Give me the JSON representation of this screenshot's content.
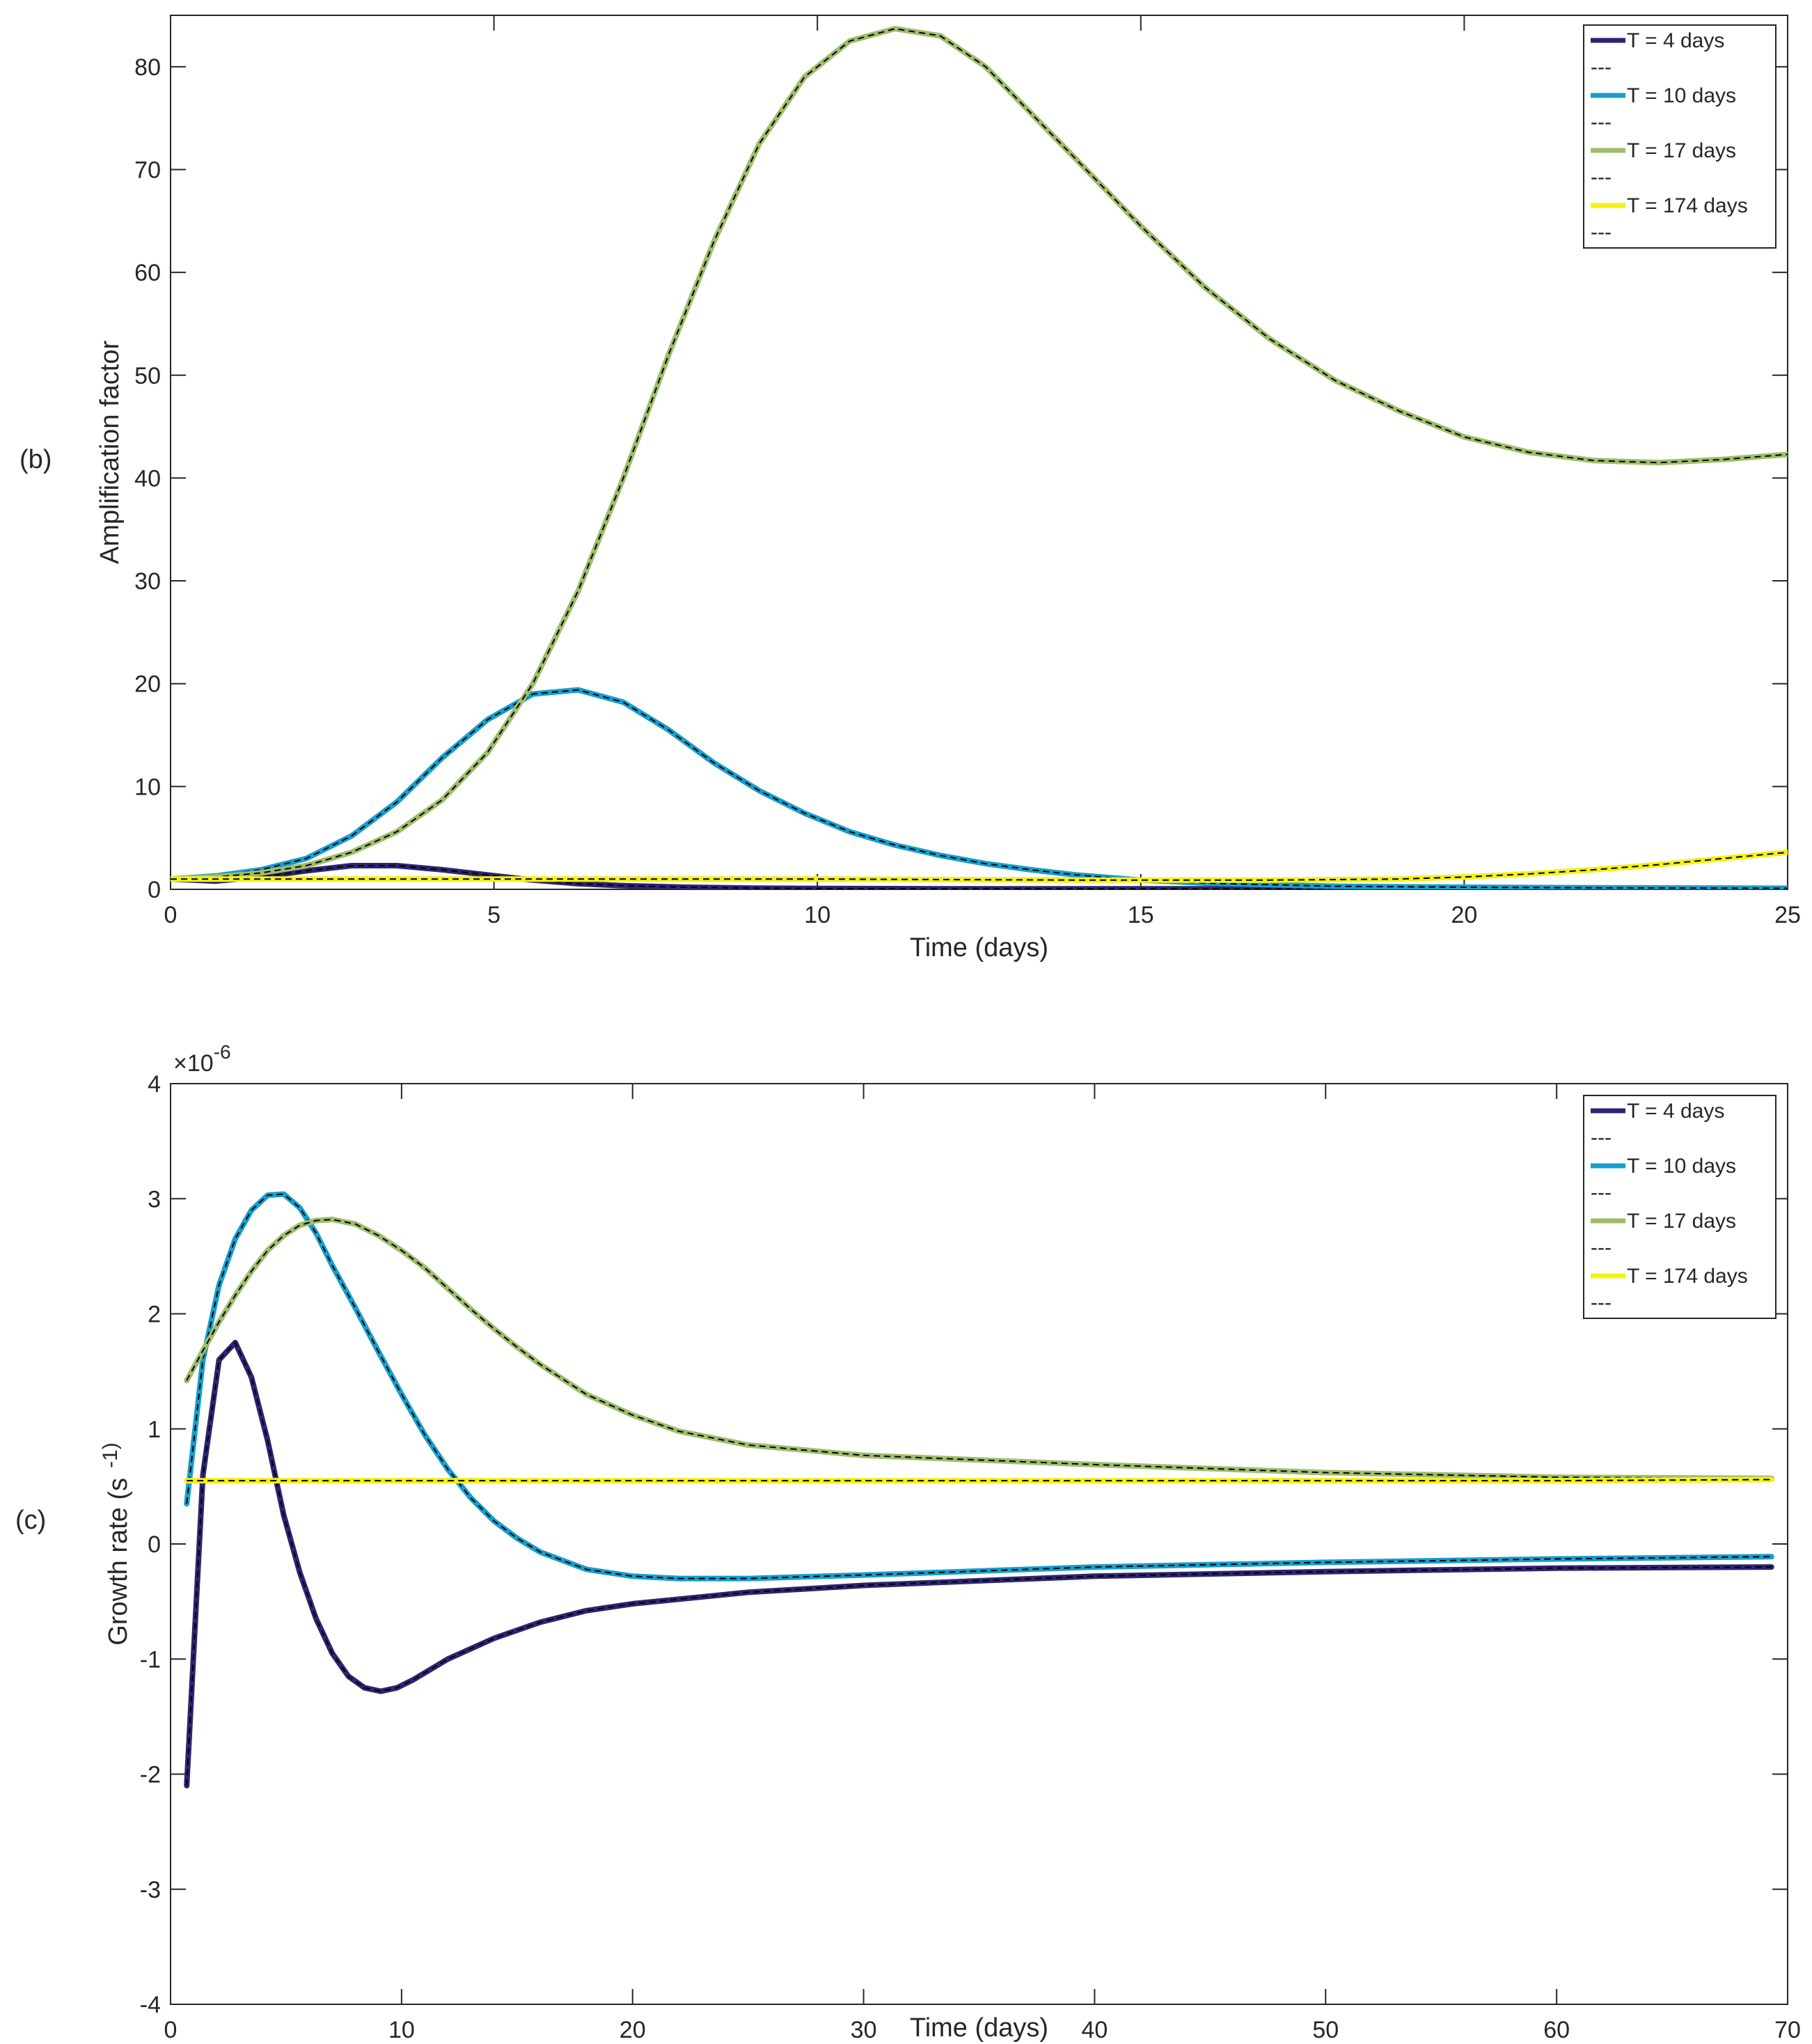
{
  "colors": {
    "t4": "#2e2472",
    "t10": "#169ecd",
    "t17": "#9fbd6b",
    "t174": "#f4f013",
    "dashed": "#000000",
    "axis": "#262626"
  },
  "chart_data": [
    {
      "type": "line",
      "panel_label": "(b)",
      "title": "",
      "xlabel": "Time (days)",
      "ylabel": "Amplification factor",
      "xlim": [
        0,
        25
      ],
      "ylim": [
        0,
        85
      ],
      "xticks": [
        0,
        5,
        10,
        15,
        20,
        25
      ],
      "yticks": [
        0,
        10,
        20,
        30,
        40,
        50,
        60,
        70,
        80
      ],
      "xtick_labels": [
        "0",
        "5",
        "10",
        "15",
        "20",
        "25"
      ],
      "ytick_labels": [
        "0",
        "10",
        "20",
        "30",
        "40",
        "50",
        "60",
        "70",
        "80"
      ],
      "legend_position": "top-right",
      "series": [
        {
          "name": "T = 4 days",
          "dashed_name": "---",
          "color_key": "t4",
          "x": [
            0,
            0.7,
            1.4,
            2.1,
            2.8,
            3.5,
            4.2,
            4.9,
            5.6,
            6.3,
            7.0,
            8.0,
            9.0,
            10.0,
            12.0,
            15.0,
            20.0,
            25.0
          ],
          "y": [
            1.0,
            0.8,
            1.2,
            1.8,
            2.3,
            2.3,
            1.9,
            1.4,
            0.9,
            0.55,
            0.35,
            0.2,
            0.12,
            0.08,
            0.05,
            0.05,
            0.05,
            0.05
          ]
        },
        {
          "name": "T = 10 days",
          "dashed_name": "---",
          "color_key": "t10",
          "x": [
            0,
            0.7,
            1.4,
            2.1,
            2.8,
            3.5,
            4.2,
            4.9,
            5.6,
            6.3,
            7.0,
            7.7,
            8.4,
            9.1,
            9.8,
            10.5,
            11.2,
            11.9,
            12.6,
            13.3,
            14.0,
            15.0,
            16.0,
            18.0,
            20.0,
            22.0,
            25.0
          ],
          "y": [
            1.0,
            1.3,
            1.9,
            3.0,
            5.2,
            8.5,
            12.8,
            16.5,
            19.0,
            19.4,
            18.2,
            15.5,
            12.3,
            9.6,
            7.4,
            5.6,
            4.3,
            3.3,
            2.5,
            1.9,
            1.4,
            0.9,
            0.6,
            0.3,
            0.2,
            0.15,
            0.1
          ]
        },
        {
          "name": "T = 17 days",
          "dashed_name": "---",
          "color_key": "t17",
          "x": [
            0,
            0.7,
            1.4,
            2.1,
            2.8,
            3.5,
            4.2,
            4.9,
            5.6,
            6.3,
            7.0,
            7.7,
            8.4,
            9.1,
            9.8,
            10.5,
            11.2,
            11.9,
            12.6,
            13.3,
            14.0,
            15.0,
            16.0,
            17.0,
            18.0,
            19.0,
            20.0,
            21.0,
            22.0,
            23.0,
            24.0,
            25.0
          ],
          "y": [
            1.0,
            1.2,
            1.6,
            2.3,
            3.6,
            5.6,
            8.7,
            13.3,
            20.0,
            29.0,
            40.0,
            52.0,
            63.0,
            72.5,
            79.0,
            82.5,
            83.7,
            83.0,
            80.0,
            75.5,
            71.0,
            64.5,
            58.5,
            53.5,
            49.5,
            46.5,
            44.0,
            42.5,
            41.7,
            41.5,
            41.8,
            42.3
          ]
        },
        {
          "name": "T = 174 days",
          "dashed_name": "---",
          "color_key": "t174",
          "x": [
            0,
            2,
            4,
            6,
            8,
            10,
            12,
            14,
            16,
            17,
            18,
            19,
            20,
            21,
            22,
            23,
            24,
            25
          ],
          "y": [
            1.0,
            1.0,
            1.0,
            1.0,
            1.0,
            1.0,
            0.95,
            0.9,
            0.9,
            0.9,
            0.95,
            1.0,
            1.2,
            1.5,
            1.9,
            2.4,
            3.0,
            3.6
          ]
        }
      ]
    },
    {
      "type": "line",
      "panel_label": "(c)",
      "title": "",
      "xlabel": "Time (days)",
      "ylabel": "Growth rate (s",
      "ylabel_exponent": "-1)",
      "exponent_label": "×10",
      "exponent_power": "-6",
      "xlim": [
        0,
        70
      ],
      "ylim": [
        -4,
        4
      ],
      "xticks": [
        0,
        10,
        20,
        30,
        40,
        50,
        60,
        70
      ],
      "yticks": [
        -4,
        -3,
        -2,
        -1,
        0,
        1,
        2,
        3,
        4
      ],
      "xtick_labels": [
        "0",
        "10",
        "20",
        "30",
        "40",
        "50",
        "60",
        "70"
      ],
      "ytick_labels": [
        "-4",
        "-3",
        "-2",
        "-1",
        "0",
        "1",
        "2",
        "3",
        "4"
      ],
      "legend_position": "top-right",
      "series": [
        {
          "name": "T = 4 days",
          "dashed_name": "---",
          "color_key": "t4",
          "x": [
            0.7,
            1.4,
            2.1,
            2.8,
            3.5,
            4.2,
            4.9,
            5.6,
            6.3,
            7.0,
            7.7,
            8.4,
            9.1,
            9.8,
            10.5,
            12,
            14,
            16,
            18,
            20,
            25,
            30,
            40,
            50,
            60,
            69.3
          ],
          "y": [
            -2.1,
            0.6,
            1.6,
            1.75,
            1.45,
            0.9,
            0.25,
            -0.25,
            -0.65,
            -0.95,
            -1.15,
            -1.25,
            -1.28,
            -1.25,
            -1.18,
            -1.0,
            -0.82,
            -0.68,
            -0.58,
            -0.52,
            -0.42,
            -0.36,
            -0.28,
            -0.24,
            -0.21,
            -0.2
          ]
        },
        {
          "name": "T = 10 days",
          "dashed_name": "---",
          "color_key": "t10",
          "x": [
            0.7,
            1.4,
            2.1,
            2.8,
            3.5,
            4.2,
            4.9,
            5.6,
            6.3,
            7.0,
            8.0,
            9.0,
            10.0,
            11.0,
            12.0,
            13.0,
            14.0,
            15.0,
            16.0,
            18.0,
            20.0,
            22.0,
            25.0,
            30.0,
            40.0,
            50.0,
            60.0,
            69.3
          ],
          "y": [
            0.35,
            1.6,
            2.25,
            2.65,
            2.9,
            3.03,
            3.04,
            2.92,
            2.7,
            2.42,
            2.05,
            1.67,
            1.3,
            0.95,
            0.65,
            0.4,
            0.2,
            0.05,
            -0.07,
            -0.22,
            -0.28,
            -0.3,
            -0.3,
            -0.27,
            -0.2,
            -0.16,
            -0.13,
            -0.11
          ]
        },
        {
          "name": "T = 17 days",
          "dashed_name": "---",
          "color_key": "t17",
          "x": [
            0.7,
            1.4,
            2.1,
            2.8,
            3.5,
            4.2,
            4.9,
            5.6,
            6.3,
            7.0,
            8.0,
            9.0,
            10.0,
            11.0,
            12.0,
            13.0,
            14.0,
            15.0,
            16.0,
            18.0,
            20.0,
            22.0,
            25.0,
            30.0,
            35.0,
            40.0,
            50.0,
            60.0,
            69.3
          ],
          "y": [
            1.42,
            1.68,
            1.93,
            2.16,
            2.37,
            2.55,
            2.68,
            2.77,
            2.81,
            2.82,
            2.78,
            2.68,
            2.55,
            2.4,
            2.22,
            2.04,
            1.87,
            1.71,
            1.56,
            1.3,
            1.12,
            0.98,
            0.86,
            0.77,
            0.73,
            0.69,
            0.62,
            0.58,
            0.57
          ]
        },
        {
          "name": "T = 174 days",
          "dashed_name": "---",
          "color_key": "t174",
          "x": [
            0.7,
            10,
            20,
            30,
            40,
            50,
            60,
            69.3
          ],
          "y": [
            0.55,
            0.55,
            0.55,
            0.55,
            0.55,
            0.55,
            0.55,
            0.56
          ]
        }
      ]
    }
  ]
}
